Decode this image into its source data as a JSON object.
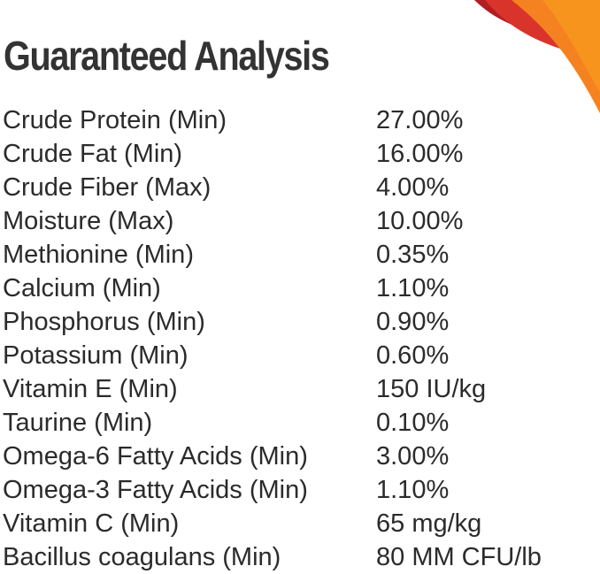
{
  "title": "Guaranteed Analysis",
  "colors": {
    "text": "#2b2b2b",
    "accent_orange": "#f58220",
    "accent_red": "#d9342b",
    "accent_dark_red": "#b01e23"
  },
  "rows": [
    {
      "label": "Crude Protein (Min)",
      "value": "27.00%"
    },
    {
      "label": "Crude Fat (Min)",
      "value": "16.00%"
    },
    {
      "label": "Crude Fiber (Max)",
      "value": "4.00%"
    },
    {
      "label": "Moisture (Max)",
      "value": "10.00%"
    },
    {
      "label": "Methionine (Min)",
      "value": "0.35%"
    },
    {
      "label": "Calcium (Min)",
      "value": "1.10%"
    },
    {
      "label": "Phosphorus (Min)",
      "value": "0.90%"
    },
    {
      "label": "Potassium (Min)",
      "value": "0.60%"
    },
    {
      "label": "Vitamin E (Min)",
      "value": "150 IU/kg"
    },
    {
      "label": "Taurine (Min)",
      "value": "0.10%"
    },
    {
      "label": "Omega-6 Fatty Acids (Min)",
      "value": "3.00%"
    },
    {
      "label": "Omega-3 Fatty Acids (Min)",
      "value": "1.10%"
    },
    {
      "label": "Vitamin C (Min)",
      "value": "65 mg/kg"
    },
    {
      "label": "Bacillus coagulans (Min)",
      "value": "80 MM CFU/lb"
    }
  ]
}
